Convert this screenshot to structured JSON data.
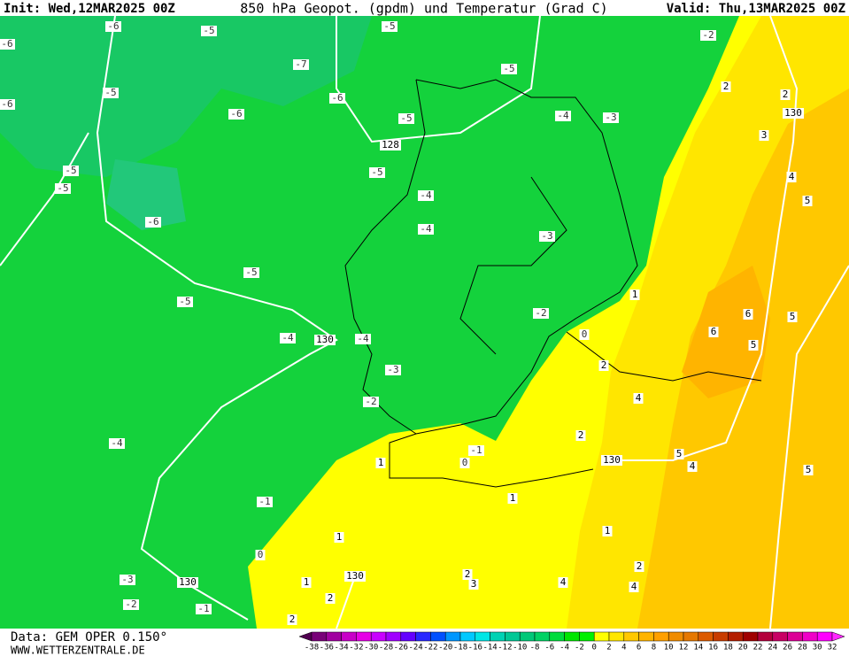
{
  "header": {
    "init": "Init: Wed,12MAR2025 00Z",
    "title": "850 hPa Geopot. (gpdm) und Temperatur (Grad C)",
    "valid": "Valid: Thu,13MAR2025 00Z"
  },
  "footer": {
    "source": "Data: GEM OPER 0.150°",
    "site": "WWW.WETTERZENTRALE.DE"
  },
  "colorbar": {
    "labels": [
      -38,
      -36,
      -34,
      -32,
      -30,
      -28,
      -26,
      -24,
      -22,
      -20,
      -18,
      -16,
      -14,
      -12,
      -10,
      -8,
      -6,
      -4,
      -2,
      0,
      2,
      4,
      6,
      8,
      10,
      12,
      14,
      16,
      18,
      20,
      22,
      24,
      26,
      28,
      30,
      32
    ],
    "colors": [
      "#500050",
      "#780078",
      "#a000a0",
      "#c800c8",
      "#e600e6",
      "#c800ff",
      "#a000ff",
      "#6400ff",
      "#2828ff",
      "#0050ff",
      "#0096ff",
      "#00c8ff",
      "#00e6e6",
      "#00d2b4",
      "#00c896",
      "#00c878",
      "#00d264",
      "#00dc3c",
      "#00e600",
      "#00f000",
      "#ffff00",
      "#ffe600",
      "#ffc800",
      "#ffb400",
      "#ffa000",
      "#f08c00",
      "#e67800",
      "#dc5a00",
      "#c83c00",
      "#b41e00",
      "#a00000",
      "#b4003c",
      "#c80064",
      "#dc0096",
      "#f000c8",
      "#ff00ff",
      "#ff28ff"
    ]
  },
  "map": {
    "temperature_labels": [
      -6,
      -5,
      -5,
      -6,
      -7,
      -5,
      -5,
      -6,
      -6,
      -6,
      -5,
      -4,
      -3,
      -5,
      -5,
      -5,
      -4,
      -6,
      -4,
      -3,
      -5,
      -5,
      -2,
      -4,
      -4,
      -3,
      -2,
      -4,
      -1,
      -1,
      -3,
      -2,
      -1,
      0,
      0,
      0,
      2,
      2,
      3,
      4,
      5,
      1,
      6,
      6,
      5,
      5,
      2,
      4,
      2,
      5,
      4,
      5,
      1,
      1,
      1,
      1,
      2,
      4,
      4,
      2,
      3,
      1,
      2,
      2,
      -2
    ],
    "geopotential_labels": [
      128,
      130,
      130,
      130,
      130,
      130
    ]
  }
}
